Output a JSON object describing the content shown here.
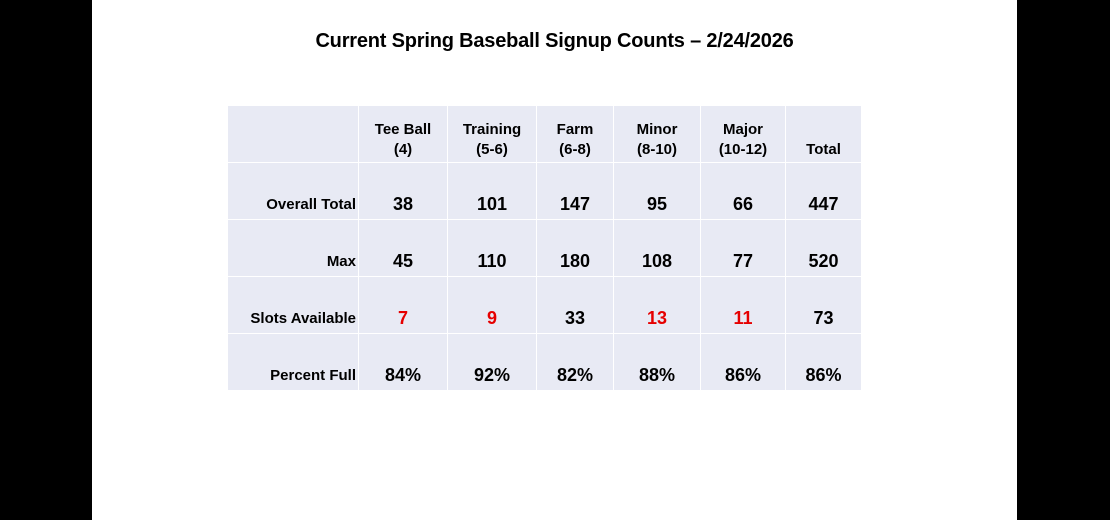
{
  "title": "Current Spring Baseball Signup Counts – 2/24/2026",
  "table": {
    "columns": [
      {
        "line1": "Tee Ball",
        "line2": "(4)"
      },
      {
        "line1": "Training",
        "line2": "(5-6)"
      },
      {
        "line1": "Farm",
        "line2": "(6-8)"
      },
      {
        "line1": "Minor",
        "line2": "(8-10)"
      },
      {
        "line1": "Major",
        "line2": "(10-12)"
      },
      {
        "line1": "",
        "line2": "Total"
      }
    ],
    "rows": [
      {
        "label": "Overall Total",
        "values": [
          "38",
          "101",
          "147",
          "95",
          "66",
          "447"
        ]
      },
      {
        "label": "Max",
        "values": [
          "45",
          "110",
          "180",
          "108",
          "77",
          "520"
        ]
      },
      {
        "label": "Slots Available",
        "values": [
          "7",
          "9",
          "33",
          "13",
          "11",
          "73"
        ]
      },
      {
        "label": "Percent Full",
        "values": [
          "84%",
          "92%",
          "82%",
          "88%",
          "86%",
          "86%"
        ]
      }
    ],
    "highlight_color": "#e60000",
    "cell_background": "#e8eaf4"
  }
}
